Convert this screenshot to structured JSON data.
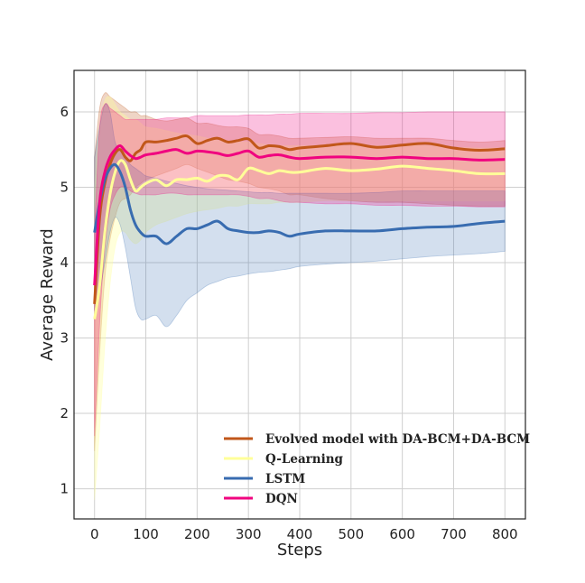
{
  "chart_data": {
    "type": "line",
    "title": "",
    "xlabel": "Steps",
    "ylabel": "Average Reward",
    "xlim": [
      -40,
      840
    ],
    "ylim": [
      0.6,
      6.55
    ],
    "xticks": [
      0,
      100,
      200,
      300,
      400,
      500,
      600,
      700,
      800
    ],
    "yticks": [
      1,
      2,
      3,
      4,
      5,
      6
    ],
    "grid": true,
    "legend_position": "bottom-right",
    "x": [
      0,
      10,
      20,
      30,
      40,
      50,
      60,
      70,
      80,
      90,
      100,
      120,
      140,
      160,
      180,
      200,
      220,
      240,
      260,
      280,
      300,
      320,
      340,
      360,
      380,
      400,
      450,
      500,
      550,
      600,
      650,
      700,
      750,
      800
    ],
    "series": [
      {
        "name": "Evolved model with DA-BCM+DA-BCM",
        "color": "#c1571a",
        "values": [
          3.45,
          4.6,
          5.05,
          5.3,
          5.45,
          5.5,
          5.4,
          5.35,
          5.45,
          5.5,
          5.6,
          5.6,
          5.62,
          5.65,
          5.68,
          5.58,
          5.62,
          5.65,
          5.6,
          5.62,
          5.64,
          5.52,
          5.55,
          5.54,
          5.5,
          5.52,
          5.55,
          5.58,
          5.53,
          5.56,
          5.58,
          5.52,
          5.49,
          5.51
        ],
        "upper": [
          5.4,
          6.05,
          6.25,
          6.2,
          6.15,
          6.1,
          6.05,
          6.0,
          6.0,
          5.95,
          5.95,
          5.9,
          5.88,
          5.9,
          5.92,
          5.85,
          5.85,
          5.82,
          5.8,
          5.8,
          5.78,
          5.7,
          5.7,
          5.68,
          5.65,
          5.65,
          5.66,
          5.67,
          5.65,
          5.65,
          5.65,
          5.62,
          5.6,
          5.62
        ],
        "lower": [
          1.5,
          2.8,
          3.8,
          4.3,
          4.6,
          4.8,
          4.85,
          4.9,
          5.0,
          5.05,
          5.1,
          5.15,
          5.2,
          5.25,
          5.3,
          5.25,
          5.2,
          5.15,
          5.1,
          5.08,
          5.05,
          5.0,
          4.98,
          4.95,
          4.9,
          4.9,
          4.85,
          4.82,
          4.8,
          4.8,
          4.78,
          4.76,
          4.75,
          4.75
        ]
      },
      {
        "name": "Q-Learning",
        "color": "#ffff99",
        "values": [
          3.25,
          3.7,
          4.4,
          4.9,
          5.2,
          5.35,
          5.3,
          5.1,
          4.95,
          5.0,
          5.05,
          5.1,
          5.02,
          5.1,
          5.1,
          5.12,
          5.08,
          5.15,
          5.15,
          5.1,
          5.25,
          5.22,
          5.18,
          5.22,
          5.2,
          5.2,
          5.25,
          5.22,
          5.24,
          5.28,
          5.25,
          5.22,
          5.18,
          5.18
        ],
        "upper": [
          5.0,
          5.8,
          6.15,
          6.2,
          6.1,
          6.0,
          5.95,
          5.9,
          5.9,
          5.85,
          5.8,
          5.78,
          5.75,
          5.72,
          5.7,
          5.68,
          5.65,
          5.62,
          5.6,
          5.6,
          5.6,
          5.58,
          5.56,
          5.55,
          5.55,
          5.55,
          5.55,
          5.55,
          5.55,
          5.55,
          5.55,
          5.53,
          5.52,
          5.52
        ],
        "lower": [
          0.85,
          1.8,
          2.9,
          3.7,
          4.2,
          4.4,
          4.4,
          4.3,
          4.25,
          4.3,
          4.4,
          4.5,
          4.55,
          4.6,
          4.65,
          4.68,
          4.7,
          4.72,
          4.75,
          4.75,
          4.78,
          4.78,
          4.78,
          4.8,
          4.8,
          4.8,
          4.82,
          4.82,
          4.82,
          4.82,
          4.82,
          4.82,
          4.82,
          4.82
        ]
      },
      {
        "name": "LSTM",
        "color": "#386cb0",
        "values": [
          4.4,
          4.8,
          5.1,
          5.25,
          5.3,
          5.2,
          5.0,
          4.7,
          4.5,
          4.4,
          4.35,
          4.35,
          4.25,
          4.35,
          4.45,
          4.45,
          4.5,
          4.55,
          4.45,
          4.42,
          4.4,
          4.4,
          4.42,
          4.4,
          4.35,
          4.38,
          4.42,
          4.42,
          4.42,
          4.45,
          4.47,
          4.48,
          4.52,
          4.55
        ],
        "upper": [
          5.4,
          5.8,
          6.1,
          6.0,
          5.6,
          5.5,
          5.4,
          5.3,
          5.25,
          5.2,
          5.15,
          5.12,
          5.08,
          5.05,
          5.02,
          5.0,
          4.98,
          4.97,
          4.96,
          4.95,
          4.94,
          4.93,
          4.93,
          4.92,
          4.92,
          4.92,
          4.92,
          4.92,
          4.93,
          4.95,
          4.95,
          4.95,
          4.95,
          4.95
        ],
        "lower": [
          3.3,
          3.6,
          4.0,
          4.4,
          4.6,
          4.5,
          4.2,
          3.8,
          3.4,
          3.25,
          3.25,
          3.3,
          3.15,
          3.3,
          3.5,
          3.6,
          3.7,
          3.75,
          3.8,
          3.82,
          3.85,
          3.87,
          3.88,
          3.9,
          3.92,
          3.95,
          3.98,
          4.0,
          4.02,
          4.05,
          4.08,
          4.1,
          4.12,
          4.15
        ]
      },
      {
        "name": "DQN",
        "color": "#f0027f",
        "values": [
          3.7,
          4.8,
          5.2,
          5.4,
          5.5,
          5.55,
          5.48,
          5.42,
          5.38,
          5.4,
          5.43,
          5.45,
          5.48,
          5.5,
          5.45,
          5.48,
          5.47,
          5.45,
          5.42,
          5.45,
          5.48,
          5.4,
          5.42,
          5.43,
          5.4,
          5.38,
          5.4,
          5.4,
          5.38,
          5.4,
          5.38,
          5.38,
          5.36,
          5.37
        ],
        "upper": [
          4.4,
          5.8,
          6.1,
          6.05,
          6.0,
          5.95,
          5.9,
          5.9,
          5.9,
          5.9,
          5.9,
          5.9,
          5.92,
          5.92,
          5.92,
          5.95,
          5.95,
          5.95,
          5.95,
          5.95,
          5.96,
          5.96,
          5.96,
          5.97,
          5.97,
          5.98,
          5.98,
          5.98,
          5.99,
          5.99,
          6.0,
          6.0,
          6.0,
          6.0
        ],
        "lower": [
          1.7,
          3.2,
          4.2,
          4.7,
          4.9,
          5.0,
          5.0,
          4.95,
          4.92,
          4.9,
          4.9,
          4.9,
          4.92,
          4.92,
          4.9,
          4.9,
          4.9,
          4.9,
          4.9,
          4.9,
          4.88,
          4.85,
          4.85,
          4.82,
          4.8,
          4.8,
          4.78,
          4.78,
          4.76,
          4.76,
          4.75,
          4.75,
          4.74,
          4.74
        ]
      }
    ]
  }
}
